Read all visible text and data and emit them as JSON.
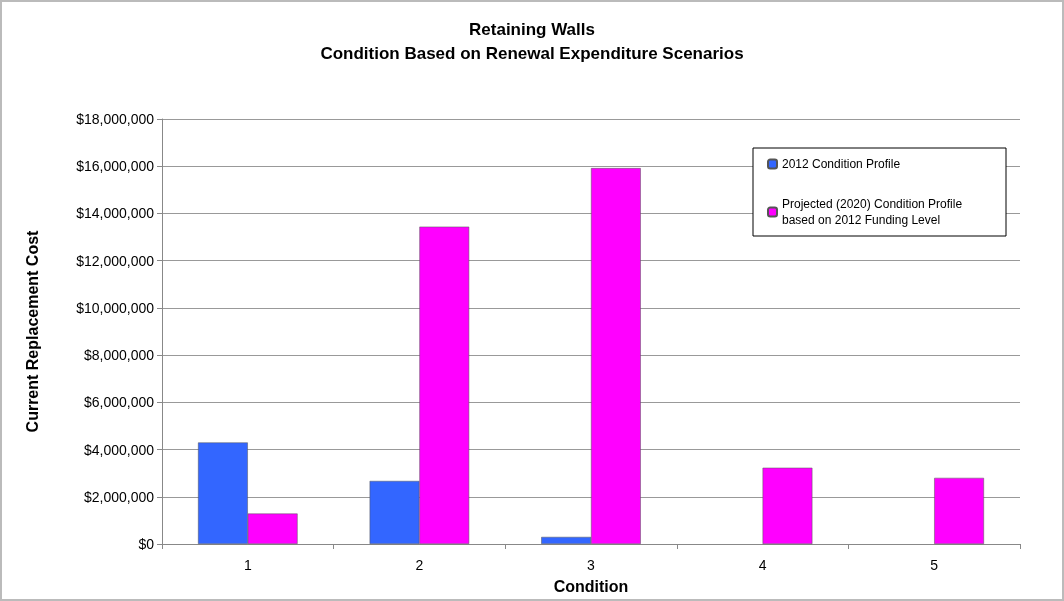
{
  "chart_data": {
    "type": "bar",
    "title": "Retaining Walls\nCondition Based on Renewal Expenditure Scenarios",
    "xlabel": "Condition",
    "ylabel": "Current Replacement Cost",
    "categories": [
      "1",
      "2",
      "3",
      "4",
      "5"
    ],
    "series": [
      {
        "name": "2012 Condition Profile",
        "color": "#3366ff",
        "values": [
          4300000,
          2670000,
          300000,
          null,
          null
        ]
      },
      {
        "name": "Projected (2020) Condition Profile based on 2012 Funding Level",
        "color": "#ff00ff",
        "values": [
          1290000,
          13440000,
          15920000,
          3230000,
          2800000
        ]
      }
    ],
    "ylim": [
      0,
      18000000
    ],
    "yticks": [
      {
        "value": 0,
        "label": "$0"
      },
      {
        "value": 2000000,
        "label": "$2,000,000"
      },
      {
        "value": 4000000,
        "label": "$4,000,000"
      },
      {
        "value": 6000000,
        "label": "$6,000,000"
      },
      {
        "value": 8000000,
        "label": "$8,000,000"
      },
      {
        "value": 10000000,
        "label": "$10,000,000"
      },
      {
        "value": 12000000,
        "label": "$12,000,000"
      },
      {
        "value": 14000000,
        "label": "$14,000,000"
      },
      {
        "value": 16000000,
        "label": "$16,000,000"
      },
      {
        "value": 18000000,
        "label": "$18,000,000"
      }
    ],
    "grid": "y",
    "legend": "top right"
  }
}
